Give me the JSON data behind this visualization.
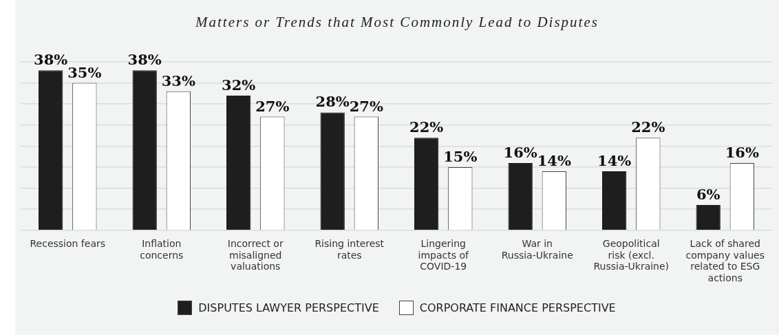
{
  "chart_data": {
    "type": "bar",
    "title": "Matters or Trends that Most Commonly Lead to Disputes",
    "categories": [
      "Recession fears",
      "Inflation concerns",
      "Incorrect or misaligned valuations",
      "Rising interest rates",
      "Lingering impacts of COVID-19",
      "War in Russia-Ukraine",
      "Geopolitical risk (excl. Russia-Ukraine)",
      "Lack of shared company values related to ESG actions"
    ],
    "series": [
      {
        "name": "DISPUTES LAWYER PERSPECTIVE",
        "color": "#1e1e1e",
        "values": [
          38,
          38,
          32,
          28,
          22,
          16,
          14,
          6
        ],
        "value_labels": [
          "38%",
          "38%",
          "32%",
          "28%",
          "22%",
          "16%",
          "14%",
          "6%"
        ]
      },
      {
        "name": "CORPORATE FINANCE PERSPECTIVE",
        "color": "#ffffff",
        "values": [
          35,
          33,
          27,
          27,
          15,
          14,
          22,
          16
        ],
        "value_labels": [
          "35%",
          "33%",
          "27%",
          "27%",
          "15%",
          "14%",
          "22%",
          "16%"
        ]
      }
    ],
    "tick_labels": "x",
    "grid": "y",
    "legend": "bottom"
  }
}
